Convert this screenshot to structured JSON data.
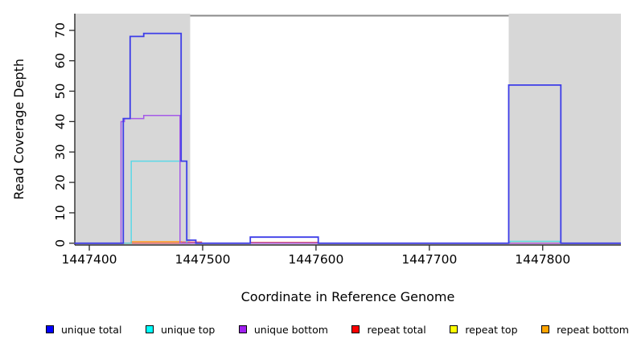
{
  "chart_data": {
    "type": "line",
    "subtype": "step-after-coverage",
    "title": "",
    "xlabel": "Coordinate in Reference Genome",
    "ylabel": "Read Coverage Depth",
    "x_ticks": [
      1447400,
      1447500,
      1447600,
      1447700,
      1447800
    ],
    "y_ticks": [
      0,
      10,
      20,
      30,
      40,
      50,
      60,
      70
    ],
    "xlim": [
      1447387,
      1447869
    ],
    "ylim": [
      0,
      70
    ],
    "grid": false,
    "legend_position": "bottom",
    "shaded_color": "#d7d7d7",
    "shaded_regions": [
      {
        "start": 1447387,
        "end": 1447489
      },
      {
        "start": 1447770,
        "end": 1447869
      }
    ],
    "top_boundary_line": {
      "start": 1447489,
      "end": 1447770,
      "color": "#8a8a8a"
    },
    "draw_order": [
      4,
      5,
      3,
      1,
      2,
      0
    ],
    "series": [
      {
        "name": "unique total",
        "legend_color": "#0000ff",
        "line_color": "#3d3de8",
        "width": 1.8,
        "opacity": 1,
        "points": [
          [
            1447387,
            0
          ],
          [
            1447430,
            41
          ],
          [
            1447436,
            68
          ],
          [
            1447448,
            69
          ],
          [
            1447481,
            27
          ],
          [
            1447486,
            1
          ],
          [
            1447494,
            0
          ],
          [
            1447542,
            2
          ],
          [
            1447602,
            0
          ],
          [
            1447770,
            52
          ],
          [
            1447816,
            0
          ]
        ]
      },
      {
        "name": "unique top",
        "legend_color": "#00ffff",
        "line_color": "#45d8ea",
        "width": 1.5,
        "opacity": 0.85,
        "points": [
          [
            1447387,
            0
          ],
          [
            1447437,
            27
          ],
          [
            1447486,
            0
          ],
          [
            1447771,
            0.6
          ],
          [
            1447815,
            0
          ]
        ]
      },
      {
        "name": "unique bottom",
        "legend_color": "#a020f0",
        "line_color": "#a55ae8",
        "width": 1.5,
        "opacity": 1,
        "points": [
          [
            1447387,
            0
          ],
          [
            1447428,
            40
          ],
          [
            1447431,
            41
          ],
          [
            1447448,
            42
          ],
          [
            1447480,
            0
          ]
        ]
      },
      {
        "name": "repeat total",
        "legend_color": "#ff0000",
        "line_color": "#e0626e",
        "width": 1.4,
        "opacity": 1,
        "points": [
          [
            1447387,
            0
          ],
          [
            1447482,
            0.4
          ],
          [
            1447499,
            0
          ],
          [
            1447543,
            0.3
          ],
          [
            1447601,
            0
          ]
        ]
      },
      {
        "name": "repeat top",
        "legend_color": "#ffff00",
        "line_color": "#ece5a8",
        "width": 1.4,
        "opacity": 1,
        "points": [
          [
            1447387,
            0
          ],
          [
            1447771,
            0.25
          ],
          [
            1447815,
            0
          ]
        ]
      },
      {
        "name": "repeat bottom",
        "legend_color": "#ffa500",
        "line_color": "#ff9d2e",
        "width": 1.6,
        "opacity": 1,
        "points": [
          [
            1447387,
            0
          ],
          [
            1447437,
            0.5
          ],
          [
            1447481,
            0
          ]
        ]
      }
    ],
    "legend": [
      {
        "label": "unique total",
        "color": "#0000ff"
      },
      {
        "label": "unique top",
        "color": "#00ffff"
      },
      {
        "label": "unique bottom",
        "color": "#a020f0"
      },
      {
        "label": "repeat total",
        "color": "#ff0000"
      },
      {
        "label": "repeat top",
        "color": "#ffff00"
      },
      {
        "label": "repeat bottom",
        "color": "#ffa500"
      }
    ]
  }
}
